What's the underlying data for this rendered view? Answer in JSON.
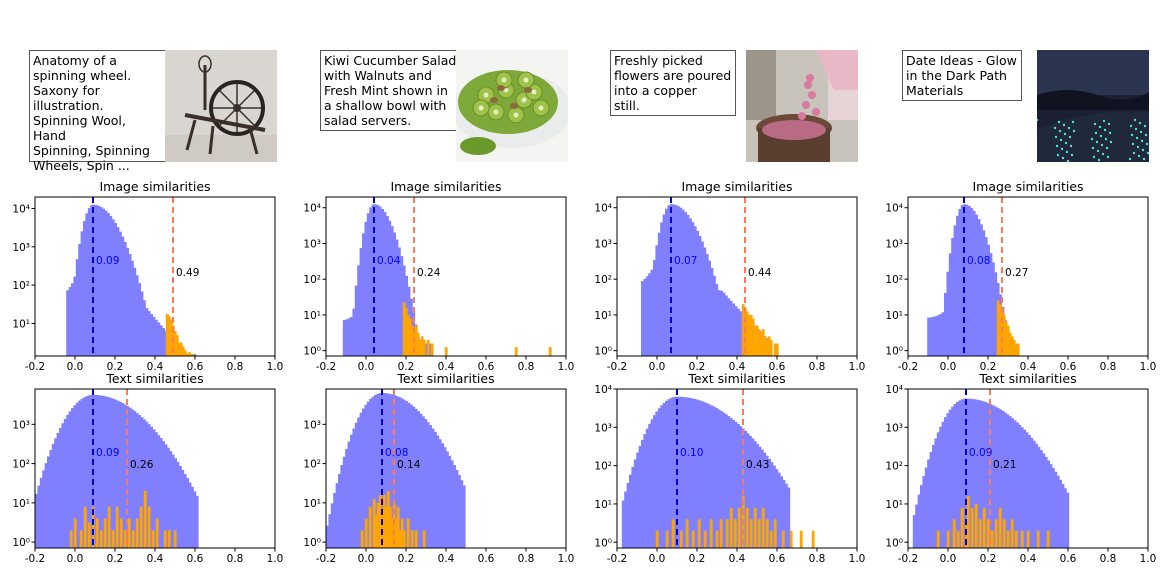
{
  "panels": [
    {
      "caption": "Anatomy of a\nspinning wheel.\nSaxony for\nillustration.\nSpinning Wool, Hand\nSpinning, Spinning\nWheels, Spin ...",
      "image_subject": "spinning wheel",
      "image_hist": {
        "title": "Image similarities",
        "median": 0.09,
        "threshold": 0.49,
        "median_label": "0.09",
        "threshold_label": "0.49",
        "bulk": {
          "min": -0.05,
          "peak": 0.09,
          "max": 0.6,
          "left_w": 0.045,
          "right_w": 0.085,
          "amp": 4.1,
          "tail_amp": 1.4,
          "tail_w": 0.16,
          "floor": 0.2
        },
        "ylim_log": [
          0.15,
          4.3
        ],
        "yticks": [
          "10¹",
          "10²",
          "10³",
          "10⁴"
        ],
        "highlight": [
          [
            0.46,
            1.25
          ],
          [
            0.47,
            1.2
          ],
          [
            0.48,
            1.1
          ],
          [
            0.49,
            0.95
          ],
          [
            0.5,
            0.8
          ],
          [
            0.51,
            0.7
          ],
          [
            0.52,
            0.5
          ],
          [
            0.53,
            0.5
          ],
          [
            0.54,
            0.4
          ],
          [
            0.55,
            0.3
          ],
          [
            0.56,
            0.2
          ],
          [
            0.57,
            0.25
          ],
          [
            0.58,
            0.2
          ],
          [
            0.59,
            0.2
          ]
        ]
      },
      "text_hist": {
        "title": "Text similarities",
        "median": 0.09,
        "threshold": 0.26,
        "median_label": "0.09",
        "threshold_label": "0.26",
        "bulk": {
          "min": -0.2,
          "peak": 0.09,
          "max": 0.62,
          "left_w": 0.12,
          "right_w": 0.17,
          "amp": 3.75,
          "floor": 0.2
        },
        "ylim_log": [
          -0.15,
          3.9
        ],
        "yticks": [
          "10⁰",
          "10¹",
          "10²",
          "10³"
        ],
        "highlight": [
          [
            -0.02,
            0.3
          ],
          [
            0.0,
            0.6
          ],
          [
            0.03,
            0.3
          ],
          [
            0.05,
            0.9
          ],
          [
            0.07,
            0.5
          ],
          [
            0.09,
            0.9
          ],
          [
            0.11,
            0.6
          ],
          [
            0.13,
            0.3
          ],
          [
            0.15,
            0.6
          ],
          [
            0.17,
            0.9
          ],
          [
            0.19,
            0.3
          ],
          [
            0.21,
            0.9
          ],
          [
            0.23,
            0.6
          ],
          [
            0.25,
            0.3
          ],
          [
            0.27,
            0.6
          ],
          [
            0.29,
            0.3
          ],
          [
            0.31,
            0.6
          ],
          [
            0.33,
            0.9
          ],
          [
            0.35,
            1.3
          ],
          [
            0.37,
            0.9
          ],
          [
            0.39,
            0.3
          ],
          [
            0.41,
            0.6
          ],
          [
            0.45,
            0.3
          ],
          [
            0.47,
            0.3
          ],
          [
            0.5,
            0.3
          ]
        ]
      }
    },
    {
      "caption": "Kiwi Cucumber Salad\nwith Walnuts and\nFresh Mint shown in\na shallow bowl with\nsalad servers.",
      "image_subject": "green salad",
      "image_hist": {
        "title": "Image similarities",
        "median": 0.04,
        "threshold": 0.24,
        "median_label": "0.04",
        "threshold_label": "0.24",
        "bulk": {
          "min": -0.12,
          "peak": 0.04,
          "max": 0.33,
          "left_w": 0.04,
          "right_w": 0.06,
          "amp": 4.1,
          "tail_amp": 0.8,
          "tail_w": 0.08,
          "floor": 0.2
        },
        "ylim_log": [
          -0.15,
          4.3
        ],
        "yticks": [
          "10⁰",
          "10¹",
          "10²",
          "10³",
          "10⁴"
        ],
        "highlight": [
          [
            0.19,
            1.35
          ],
          [
            0.2,
            1.2
          ],
          [
            0.21,
            1.0
          ],
          [
            0.22,
            0.9
          ],
          [
            0.23,
            0.7
          ],
          [
            0.24,
            0.6
          ],
          [
            0.25,
            0.7
          ],
          [
            0.26,
            0.5
          ],
          [
            0.27,
            0.3
          ],
          [
            0.28,
            0.4
          ],
          [
            0.29,
            0.3
          ],
          [
            0.31,
            0.3
          ],
          [
            0.33,
            0.2
          ],
          [
            0.4,
            0.1
          ],
          [
            0.75,
            0.1
          ],
          [
            0.92,
            0.1
          ]
        ]
      },
      "text_hist": {
        "title": "Text similarities",
        "median": 0.08,
        "threshold": 0.14,
        "median_label": "0.08",
        "threshold_label": "0.14",
        "bulk": {
          "min": -0.2,
          "peak": 0.08,
          "max": 0.5,
          "left_w": 0.1,
          "right_w": 0.14,
          "amp": 3.8,
          "floor": 0.2
        },
        "ylim_log": [
          -0.15,
          3.9
        ],
        "yticks": [
          "10⁰",
          "10¹",
          "10²",
          "10³"
        ],
        "highlight": [
          [
            -0.02,
            0.3
          ],
          [
            0.0,
            0.6
          ],
          [
            0.02,
            0.9
          ],
          [
            0.04,
            1.1
          ],
          [
            0.05,
            0.7
          ],
          [
            0.06,
            1.0
          ],
          [
            0.07,
            1.2
          ],
          [
            0.08,
            0.8
          ],
          [
            0.09,
            1.2
          ],
          [
            0.1,
            0.9
          ],
          [
            0.11,
            1.3
          ],
          [
            0.12,
            0.9
          ],
          [
            0.13,
            0.6
          ],
          [
            0.14,
            1.0
          ],
          [
            0.15,
            0.6
          ],
          [
            0.16,
            0.9
          ],
          [
            0.17,
            0.3
          ],
          [
            0.18,
            0.6
          ],
          [
            0.19,
            0.3
          ],
          [
            0.21,
            0.6
          ],
          [
            0.23,
            0.3
          ],
          [
            0.25,
            0.3
          ],
          [
            0.29,
            0.3
          ]
        ]
      }
    },
    {
      "caption": "Freshly picked\nflowers are poured\ninto a copper\nstill.",
      "image_subject": "flowers into copper still",
      "image_hist": {
        "title": "Image similarities",
        "median": 0.07,
        "threshold": 0.44,
        "median_label": "0.07",
        "threshold_label": "0.44",
        "bulk": {
          "min": -0.08,
          "peak": 0.07,
          "max": 0.56,
          "left_w": 0.045,
          "right_w": 0.08,
          "amp": 4.1,
          "tail_amp": 1.6,
          "tail_w": 0.16,
          "floor": 0.2
        },
        "ylim_log": [
          -0.15,
          4.3
        ],
        "yticks": [
          "10⁰",
          "10¹",
          "10²",
          "10³",
          "10⁴"
        ],
        "highlight": [
          [
            0.43,
            1.3
          ],
          [
            0.44,
            1.2
          ],
          [
            0.45,
            1.1
          ],
          [
            0.46,
            1.0
          ],
          [
            0.47,
            1.0
          ],
          [
            0.48,
            0.9
          ],
          [
            0.49,
            0.7
          ],
          [
            0.5,
            0.7
          ],
          [
            0.51,
            0.6
          ],
          [
            0.52,
            0.5
          ],
          [
            0.53,
            0.6
          ],
          [
            0.54,
            0.4
          ],
          [
            0.55,
            0.3
          ],
          [
            0.56,
            0.4
          ],
          [
            0.57,
            0.3
          ],
          [
            0.59,
            0.2
          ],
          [
            0.6,
            0.2
          ]
        ]
      },
      "text_hist": {
        "title": "Text similarities",
        "median": 0.1,
        "threshold": 0.43,
        "median_label": "0.10",
        "threshold_label": "0.43",
        "bulk": {
          "min": -0.18,
          "peak": 0.1,
          "max": 0.66,
          "left_w": 0.11,
          "right_w": 0.19,
          "amp": 3.8,
          "floor": 0.2
        },
        "ylim_log": [
          -0.15,
          4.0
        ],
        "yticks": [
          "10⁰",
          "10¹",
          "10²",
          "10³",
          "10⁴"
        ],
        "highlight": [
          [
            0.0,
            0.3
          ],
          [
            0.05,
            0.3
          ],
          [
            0.08,
            0.6
          ],
          [
            0.12,
            0.3
          ],
          [
            0.15,
            0.6
          ],
          [
            0.18,
            0.3
          ],
          [
            0.21,
            0.6
          ],
          [
            0.24,
            0.3
          ],
          [
            0.27,
            0.6
          ],
          [
            0.3,
            0.3
          ],
          [
            0.32,
            0.6
          ],
          [
            0.35,
            0.6
          ],
          [
            0.37,
            0.9
          ],
          [
            0.39,
            0.6
          ],
          [
            0.41,
            0.9
          ],
          [
            0.43,
            1.2
          ],
          [
            0.45,
            0.9
          ],
          [
            0.47,
            0.6
          ],
          [
            0.49,
            0.9
          ],
          [
            0.51,
            0.6
          ],
          [
            0.53,
            0.9
          ],
          [
            0.55,
            0.6
          ],
          [
            0.57,
            0.3
          ],
          [
            0.59,
            0.6
          ],
          [
            0.63,
            0.3
          ],
          [
            0.67,
            0.3
          ],
          [
            0.72,
            0.3
          ],
          [
            0.78,
            0.3
          ]
        ]
      }
    },
    {
      "caption": "Date Ideas - Glow\nin the Dark Path\nMaterials",
      "image_subject": "glowing path at night",
      "image_hist": {
        "title": "Image similarities",
        "median": 0.08,
        "threshold": 0.27,
        "median_label": "0.08",
        "threshold_label": "0.27",
        "bulk": {
          "min": -0.1,
          "peak": 0.08,
          "max": 0.35,
          "left_w": 0.04,
          "right_w": 0.06,
          "amp": 4.1,
          "tail_amp": 0.9,
          "tail_w": 0.08,
          "floor": 0.2
        },
        "ylim_log": [
          -0.15,
          4.3
        ],
        "yticks": [
          "10⁰",
          "10¹",
          "10²",
          "10³",
          "10⁴"
        ],
        "highlight": [
          [
            0.25,
            1.4
          ],
          [
            0.26,
            1.3
          ],
          [
            0.27,
            1.2
          ],
          [
            0.28,
            1.0
          ],
          [
            0.29,
            0.8
          ],
          [
            0.3,
            0.7
          ],
          [
            0.31,
            0.5
          ],
          [
            0.32,
            0.4
          ],
          [
            0.33,
            0.3
          ],
          [
            0.34,
            0.2
          ],
          [
            0.35,
            0.2
          ]
        ]
      },
      "text_hist": {
        "title": "Text similarities",
        "median": 0.09,
        "threshold": 0.21,
        "median_label": "0.09",
        "threshold_label": "0.21",
        "bulk": {
          "min": -0.18,
          "peak": 0.09,
          "max": 0.6,
          "left_w": 0.1,
          "right_w": 0.17,
          "amp": 3.75,
          "floor": 0.2
        },
        "ylim_log": [
          -0.15,
          4.0
        ],
        "yticks": [
          "10⁰",
          "10¹",
          "10²",
          "10³",
          "10⁴"
        ],
        "highlight": [
          [
            -0.05,
            0.3
          ],
          [
            0.0,
            0.3
          ],
          [
            0.03,
            0.6
          ],
          [
            0.05,
            0.3
          ],
          [
            0.07,
            0.9
          ],
          [
            0.09,
            0.6
          ],
          [
            0.1,
            1.2
          ],
          [
            0.12,
            0.9
          ],
          [
            0.14,
            1.0
          ],
          [
            0.16,
            0.6
          ],
          [
            0.18,
            0.9
          ],
          [
            0.2,
            0.6
          ],
          [
            0.22,
            0.3
          ],
          [
            0.24,
            0.6
          ],
          [
            0.26,
            0.9
          ],
          [
            0.28,
            0.6
          ],
          [
            0.3,
            0.3
          ],
          [
            0.32,
            0.6
          ],
          [
            0.34,
            0.3
          ],
          [
            0.37,
            0.3
          ],
          [
            0.4,
            0.3
          ],
          [
            0.45,
            0.3
          ],
          [
            0.5,
            0.3
          ]
        ]
      }
    }
  ],
  "chart_data": {
    "type": "histogram",
    "x_ticks": [
      "-0.2",
      "0.0",
      "0.2",
      "0.4",
      "0.6",
      "0.8",
      "1.0"
    ],
    "xlim": [
      -0.2,
      1.0
    ],
    "y_scale": "log",
    "colors": {
      "bulk": "#8080ff",
      "highlight": "#ffa500",
      "median_line": "#0000dd",
      "threshold_line": "#ff7a50",
      "median_label": "#0000ff",
      "threshold_label": "#000000"
    },
    "bins": 100
  }
}
